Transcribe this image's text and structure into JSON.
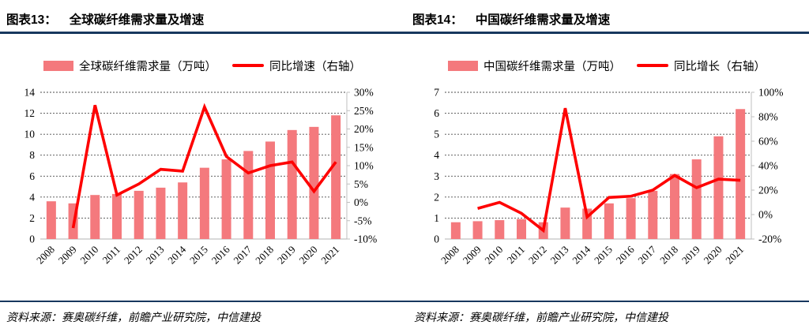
{
  "colors": {
    "bar_fill": "#f4797d",
    "line_stroke": "#fe0000",
    "rule_navy": "#17375e",
    "gridline": "#4d4d4d",
    "axis_line": "#d9d9d9",
    "right_axis_line": "#bfbfbf",
    "text": "#000000"
  },
  "panels": [
    {
      "title_label": "图表13：",
      "title_text": "全球碳纤维需求量及增速",
      "source": "资料来源：赛奥碳纤维，前瞻产业研究院，中信建投"
    },
    {
      "title_label": "图表14：",
      "title_text": "中国碳纤维需求量及增速",
      "source": "资料来源：赛奥碳纤维，前瞻产业研究院，中信建投"
    }
  ],
  "chart_data": [
    {
      "type": "bar",
      "subtype": "bar+line combo, dual axis",
      "title": "全球碳纤维需求量及增速",
      "categories": [
        "2008",
        "2009",
        "2010",
        "2011",
        "2012",
        "2013",
        "2014",
        "2015",
        "2016",
        "2017",
        "2018",
        "2019",
        "2020",
        "2021"
      ],
      "series": [
        {
          "name": "全球碳纤维需求量（万吨）",
          "type": "bar",
          "axis": "left",
          "values": [
            3.6,
            3.4,
            4.2,
            4.3,
            4.6,
            4.9,
            5.4,
            6.8,
            7.6,
            8.4,
            9.3,
            10.4,
            10.7,
            11.8
          ]
        },
        {
          "name": "同比增速（右轴）",
          "type": "line",
          "axis": "right",
          "values": [
            null,
            -7,
            26.5,
            2,
            5,
            9,
            8.5,
            26,
            12.5,
            8,
            10,
            11,
            3,
            11
          ]
        }
      ],
      "left_axis": {
        "min": 0,
        "max": 14,
        "step": 2,
        "labels": [
          "0",
          "2",
          "4",
          "6",
          "8",
          "10",
          "12",
          "14"
        ]
      },
      "right_axis": {
        "min": -10,
        "max": 30,
        "step": 5,
        "labels": [
          "-10%",
          "-5%",
          "0%",
          "5%",
          "10%",
          "15%",
          "20%",
          "25%",
          "30%"
        ]
      },
      "legend_position": "top",
      "grid": "horizontal-dashed"
    },
    {
      "type": "bar",
      "subtype": "bar+line combo, dual axis",
      "title": "中国碳纤维需求量及增速",
      "categories": [
        "2008",
        "2009",
        "2010",
        "2011",
        "2012",
        "2013",
        "2014",
        "2015",
        "2016",
        "2017",
        "2018",
        "2019",
        "2020",
        "2021"
      ],
      "series": [
        {
          "name": "中国碳纤维需求量（万吨）",
          "type": "bar",
          "axis": "left",
          "values": [
            0.8,
            0.85,
            0.9,
            0.95,
            0.8,
            1.5,
            1.45,
            1.7,
            1.95,
            2.3,
            3.1,
            3.8,
            4.9,
            6.2
          ]
        },
        {
          "name": "同比增长（右轴）",
          "type": "line",
          "axis": "right",
          "values": [
            null,
            5,
            10,
            1,
            -13,
            87,
            -2,
            14,
            15,
            20,
            32,
            22,
            29,
            28
          ]
        }
      ],
      "left_axis": {
        "min": 0,
        "max": 7,
        "step": 1,
        "labels": [
          "0",
          "1",
          "2",
          "3",
          "4",
          "5",
          "6",
          "7"
        ]
      },
      "right_axis": {
        "min": -20,
        "max": 100,
        "step": 20,
        "labels": [
          "-20%",
          "0%",
          "20%",
          "40%",
          "60%",
          "80%",
          "100%"
        ]
      },
      "legend_position": "top",
      "grid": "horizontal-dashed"
    }
  ]
}
